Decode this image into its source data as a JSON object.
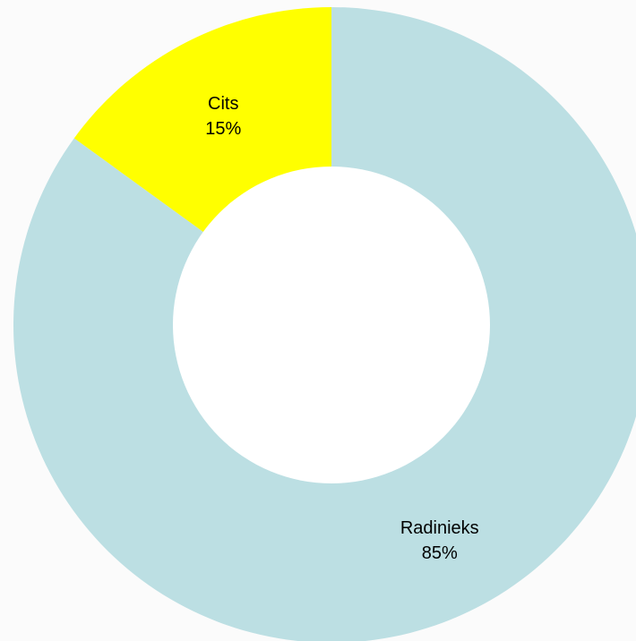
{
  "chart_data": {
    "type": "pie",
    "style": "donut",
    "title": "",
    "slices": [
      {
        "label": "Radinieks",
        "value": 85,
        "value_label": "85%",
        "color": "#bcdfe3"
      },
      {
        "label": "Cits",
        "value": 15,
        "value_label": "15%",
        "color": "#ffff00"
      }
    ],
    "start_angle_deg": 0,
    "direction": "clockwise",
    "legend": "none"
  },
  "colors": {
    "background": "#fbfbfb",
    "hole": "#ffffff"
  }
}
